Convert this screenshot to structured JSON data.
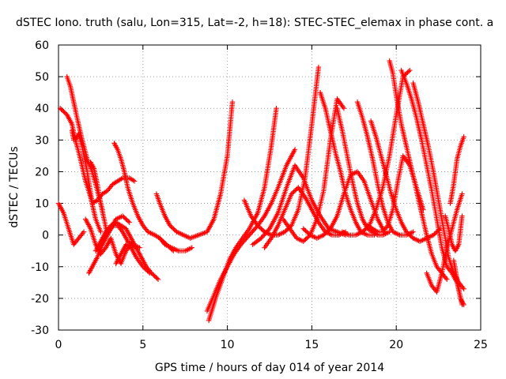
{
  "chart_data": {
    "type": "scatter",
    "title": "dSTEC Iono. truth (salu, Lon=315, Lat=-2, h=18): STEC-STEC_elemax in phase cont. a",
    "xlabel": "GPS time / hours of day 014 of year 2014",
    "ylabel": "dSTEC  / TECUs",
    "xlim": [
      0,
      25
    ],
    "ylim": [
      -30,
      60
    ],
    "x_ticks": [
      0,
      5,
      10,
      15,
      20,
      25
    ],
    "y_ticks": [
      -30,
      -20,
      -10,
      0,
      10,
      20,
      30,
      40,
      50,
      60
    ],
    "x_tick_labels": [
      "0",
      "5",
      "10",
      "15",
      "20",
      "25"
    ],
    "y_tick_labels": [
      "-30",
      "-20",
      "-10",
      "0",
      "10",
      "20",
      "30",
      "40",
      "50",
      "60"
    ],
    "grid": true,
    "marker": "plus",
    "marker_color": "#ff0000",
    "series": [
      {
        "x": [
          0.0,
          0.3,
          0.6,
          0.9,
          1.2,
          1.5
        ],
        "y": [
          10,
          7,
          2,
          -3,
          -1,
          1
        ]
      },
      {
        "x": [
          0.1,
          0.3,
          0.5,
          0.8,
          1.0,
          1.3,
          1.6,
          1.9,
          2.2,
          2.5
        ],
        "y": [
          40,
          39,
          38,
          35,
          30,
          24,
          17,
          12,
          5,
          1
        ]
      },
      {
        "x": [
          0.5,
          0.7,
          0.9,
          1.1,
          1.4,
          1.7,
          2.0,
          2.3,
          2.6
        ],
        "y": [
          50,
          47,
          42,
          37,
          30,
          24,
          20,
          14,
          8
        ]
      },
      {
        "x": [
          0.8,
          0.9,
          1.0,
          1.2,
          1.4,
          1.7,
          2.0
        ],
        "y": [
          33,
          30,
          30,
          32,
          28,
          20,
          10
        ]
      },
      {
        "x": [
          1.6,
          1.9,
          2.2,
          2.5,
          2.8,
          3.1,
          3.4,
          3.7,
          4.0,
          4.3,
          4.6
        ],
        "y": [
          5,
          2,
          -3,
          -6,
          -4,
          -1,
          -6,
          -9,
          -5,
          -3,
          -4
        ]
      },
      {
        "x": [
          1.8,
          2.0,
          2.3,
          2.6,
          2.9,
          3.2,
          3.5,
          3.8,
          4.1,
          4.4,
          4.8
        ],
        "y": [
          -12,
          -10,
          -7,
          -3,
          0,
          3,
          3,
          1,
          -2,
          -3,
          -4
        ]
      },
      {
        "x": [
          1.9,
          2.1,
          2.3,
          2.5,
          2.7,
          2.9
        ],
        "y": [
          23,
          21,
          16,
          10,
          5,
          0
        ]
      },
      {
        "x": [
          2.0,
          2.3,
          2.6,
          2.9,
          3.2,
          3.5,
          3.8,
          4.2,
          4.5
        ],
        "y": [
          10,
          11,
          13,
          14,
          16,
          17,
          18,
          18,
          17
        ]
      },
      {
        "x": [
          2.2,
          2.5,
          2.8,
          3.1,
          3.4,
          3.7,
          4.0,
          4.3,
          4.6,
          4.9,
          5.2,
          5.5,
          5.9
        ],
        "y": [
          -5,
          -2,
          1,
          3,
          4,
          3,
          2,
          -1,
          -4,
          -7,
          -10,
          -12,
          -14
        ]
      },
      {
        "x": [
          2.5,
          2.8,
          3.1,
          3.4,
          3.8,
          4.2
        ],
        "y": [
          -3,
          0,
          2,
          5,
          6,
          4
        ]
      },
      {
        "x": [
          3.3,
          3.5,
          3.7,
          3.9,
          4.1,
          4.4,
          4.7,
          5.0,
          5.3,
          5.7,
          6.0,
          6.4,
          6.8
        ],
        "y": [
          29,
          27,
          24,
          20,
          15,
          10,
          6,
          3,
          1,
          0,
          -1,
          -3,
          -5
        ]
      },
      {
        "x": [
          3.4,
          3.7,
          4.0,
          4.3,
          4.6,
          5.0,
          5.4
        ],
        "y": [
          -9,
          -6,
          -3,
          -4,
          -7,
          -10,
          -12
        ]
      },
      {
        "x": [
          5.8,
          6.0,
          6.3,
          6.6,
          7.0,
          7.4,
          7.8,
          8.3,
          8.8,
          9.2,
          9.6,
          10.0,
          10.3
        ],
        "y": [
          13,
          10,
          6,
          3,
          1,
          0,
          -1,
          0,
          1,
          5,
          13,
          25,
          42
        ]
      },
      {
        "x": [
          6.0,
          6.3,
          6.7,
          7.1,
          7.5,
          7.9
        ],
        "y": [
          -1,
          -3,
          -4,
          -5,
          -5,
          -4
        ]
      },
      {
        "x": [
          8.9,
          9.3,
          9.7,
          10.1,
          10.5,
          10.9,
          11.3,
          11.8,
          12.2,
          12.6,
          12.9
        ],
        "y": [
          -27,
          -20,
          -14,
          -8,
          -4,
          -1,
          2,
          7,
          15,
          28,
          40
        ]
      },
      {
        "x": [
          8.8,
          9.2,
          9.6,
          10.0,
          10.4,
          10.8,
          11.3,
          11.8,
          12.2,
          12.6,
          13.0,
          13.5,
          14.0
        ],
        "y": [
          -24,
          -19,
          -14,
          -10,
          -6,
          -3,
          0,
          3,
          6,
          10,
          15,
          22,
          27
        ]
      },
      {
        "x": [
          11.0,
          11.4,
          11.8,
          12.2,
          12.6,
          13.0,
          13.4,
          13.8,
          14.2,
          14.6,
          15.0,
          15.4
        ],
        "y": [
          11,
          6,
          3,
          1,
          0,
          0,
          1,
          3,
          8,
          18,
          35,
          53
        ]
      },
      {
        "x": [
          11.5,
          12.0,
          12.5,
          13.0,
          13.5,
          14.0,
          14.5,
          15.0,
          15.5,
          16.0,
          16.5,
          17.0
        ],
        "y": [
          -3,
          -1,
          2,
          7,
          15,
          22,
          18,
          11,
          6,
          2,
          1,
          0
        ]
      },
      {
        "x": [
          12.2,
          12.6,
          13.0,
          13.4,
          13.8,
          14.2,
          14.6,
          15.0,
          15.4,
          15.8,
          16.2,
          16.6,
          17.0
        ],
        "y": [
          -4,
          -1,
          3,
          8,
          13,
          15,
          12,
          8,
          4,
          1,
          0,
          0,
          1
        ]
      },
      {
        "x": [
          13.3,
          13.7,
          14.1,
          14.5,
          14.9,
          15.3,
          15.7,
          16.1,
          16.5,
          16.9
        ],
        "y": [
          5,
          2,
          -1,
          -2,
          0,
          5,
          14,
          30,
          43,
          40
        ]
      },
      {
        "x": [
          14.5,
          14.9,
          15.3,
          15.7,
          16.1,
          16.5,
          16.9,
          17.3,
          17.7,
          18.1,
          18.5,
          18.9,
          19.3
        ],
        "y": [
          2,
          0,
          -1,
          0,
          2,
          6,
          13,
          19,
          20,
          17,
          11,
          5,
          1
        ]
      },
      {
        "x": [
          15.5,
          15.8,
          16.1,
          16.4,
          16.7,
          17.0,
          17.3,
          17.6,
          17.9,
          18.3,
          18.7
        ],
        "y": [
          45,
          40,
          33,
          26,
          20,
          13,
          8,
          4,
          1,
          0,
          0
        ]
      },
      {
        "x": [
          16.5,
          16.8,
          17.1,
          17.4,
          17.7,
          18.0,
          18.3,
          18.6,
          18.9,
          19.2,
          19.6
        ],
        "y": [
          40,
          33,
          25,
          17,
          10,
          5,
          2,
          1,
          0,
          0,
          1
        ]
      },
      {
        "x": [
          16.8,
          17.2,
          17.6,
          18.0,
          18.4,
          18.8,
          19.2,
          19.6,
          20.0,
          20.4,
          20.8
        ],
        "y": [
          1,
          0,
          0,
          1,
          3,
          8,
          15,
          25,
          38,
          50,
          52
        ]
      },
      {
        "x": [
          17.7,
          18.0,
          18.3,
          18.6,
          18.9,
          19.2,
          19.5,
          19.8,
          20.2,
          20.6,
          21.0
        ],
        "y": [
          42,
          37,
          31,
          24,
          16,
          9,
          4,
          1,
          0,
          0,
          1
        ]
      },
      {
        "x": [
          18.3,
          18.6,
          18.9,
          19.2,
          19.5,
          19.8,
          20.1,
          20.4,
          20.8,
          21.2,
          21.6
        ],
        "y": [
          3,
          2,
          1,
          1,
          3,
          8,
          17,
          25,
          22,
          15,
          8
        ]
      },
      {
        "x": [
          18.5,
          18.8,
          19.1,
          19.4,
          19.7,
          20.0,
          20.3,
          20.6,
          21.0,
          21.4,
          21.8,
          22.2,
          22.6
        ],
        "y": [
          36,
          31,
          25,
          19,
          13,
          8,
          4,
          1,
          -1,
          -2,
          -1,
          0,
          2
        ]
      },
      {
        "x": [
          19.6,
          19.8,
          20.0,
          20.3,
          20.6,
          20.9,
          21.2,
          21.5,
          21.8,
          22.1,
          22.4,
          22.7,
          23.0
        ],
        "y": [
          55,
          51,
          44,
          35,
          28,
          21,
          14,
          7,
          0,
          -6,
          -10,
          -12,
          -14
        ]
      },
      {
        "x": [
          20.3,
          20.6,
          20.9,
          21.2,
          21.5,
          21.8,
          22.1,
          22.4,
          22.7,
          23.0,
          23.3,
          23.6,
          23.9
        ],
        "y": [
          52,
          48,
          43,
          37,
          30,
          22,
          14,
          5,
          -4,
          -10,
          -12,
          -15,
          -22
        ]
      },
      {
        "x": [
          21.0,
          21.3,
          21.6,
          21.9,
          22.2,
          22.5,
          22.8,
          23.1,
          23.4,
          23.7,
          24.0
        ],
        "y": [
          48,
          42,
          35,
          28,
          20,
          11,
          2,
          -7,
          -12,
          -15,
          -17
        ]
      },
      {
        "x": [
          21.8,
          22.1,
          22.4,
          22.7,
          23.0,
          23.3,
          23.6,
          23.9
        ],
        "y": [
          -12,
          -16,
          -18,
          -12,
          -4,
          2,
          8,
          13
        ]
      },
      {
        "x": [
          22.9,
          23.1,
          23.3,
          23.5,
          23.7,
          23.9
        ],
        "y": [
          6,
          2,
          -3,
          -5,
          -3,
          6
        ]
      },
      {
        "x": [
          23.2,
          23.4,
          23.6,
          23.8,
          24.0
        ],
        "y": [
          10,
          16,
          24,
          28,
          31
        ]
      },
      {
        "x": [
          23.4,
          23.6,
          23.8,
          24.0
        ],
        "y": [
          -8,
          -14,
          -20,
          -22
        ]
      }
    ]
  }
}
